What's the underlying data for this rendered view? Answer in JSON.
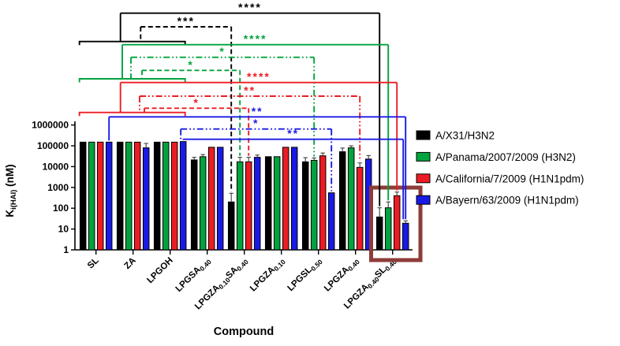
{
  "figure": {
    "x_axis_title": "Compound",
    "y_axis_title": {
      "main": "K",
      "subscript": "i(HAI)",
      "rest": " (nM)"
    },
    "y_ticks": [
      "1000000",
      "100000",
      "10000",
      "1000",
      "100",
      "10",
      "1"
    ]
  },
  "legend": {
    "items": [
      {
        "label": "A/X31/H3N2",
        "color": "#000000"
      },
      {
        "label": "A/Panama/2007/2009 (H3N2)",
        "color": "#00A33D"
      },
      {
        "label": "A/California/7/2009 (H1N1pdm)",
        "color": "#EC1C24"
      },
      {
        "label": "A/Bayern/63/2009 (H1N1pdm)",
        "color": "#1A1AE6"
      }
    ]
  },
  "chart_data": {
    "type": "bar",
    "y_scale": "log",
    "ylim": [
      1,
      1000000
    ],
    "ylabel": "Ki(HAI) (nM)",
    "xlabel": "Compound",
    "legend_position": "right",
    "grid": false,
    "categories": [
      {
        "name": "SL",
        "segments": [
          {
            "text": "SL"
          }
        ]
      },
      {
        "name": "ZA",
        "segments": [
          {
            "text": "ZA"
          }
        ]
      },
      {
        "name": "LPGOH",
        "segments": [
          {
            "text": "LPGOH"
          }
        ]
      },
      {
        "name": "LPGSA0.40",
        "segments": [
          {
            "text": "LPGSA"
          },
          {
            "text": "0.40",
            "sub": true
          }
        ]
      },
      {
        "name": "LPGZA0.10SA0.40",
        "segments": [
          {
            "text": "LPGZA"
          },
          {
            "text": "0.10",
            "sub": true
          },
          {
            "text": "SA"
          },
          {
            "text": "0.40",
            "sub": true
          }
        ]
      },
      {
        "name": "LPGZA0.10",
        "segments": [
          {
            "text": "LPGZA"
          },
          {
            "text": "0.10",
            "sub": true
          }
        ]
      },
      {
        "name": "LPGSL0.50",
        "segments": [
          {
            "text": "LPGSL"
          },
          {
            "text": "0.50",
            "sub": true
          }
        ]
      },
      {
        "name": "LPGZA0.40",
        "segments": [
          {
            "text": "LPGZA"
          },
          {
            "text": "0.40",
            "sub": true
          }
        ]
      },
      {
        "name": "LPGZA0.40SL0.40",
        "segments": [
          {
            "text": "LPGZA"
          },
          {
            "text": "0.40",
            "sub": true
          },
          {
            "text": "SL"
          },
          {
            "text": "0.40",
            "sub": true
          }
        ]
      }
    ],
    "series": [
      {
        "name": "A/X31/H3N2",
        "color": "#000000",
        "values": [
          150000,
          150000,
          150000,
          21000,
          200,
          30000,
          17000,
          52000,
          38
        ],
        "error_tops": [
          null,
          null,
          null,
          28000,
          520,
          null,
          27000,
          78000,
          105
        ]
      },
      {
        "name": "A/Panama/2007/2009 (H3N2)",
        "color": "#00A33D",
        "values": [
          150000,
          150000,
          150000,
          30000,
          17000,
          30000,
          20000,
          80000,
          105
        ],
        "error_tops": [
          null,
          null,
          null,
          38000,
          28000,
          null,
          26000,
          100000,
          200
        ]
      },
      {
        "name": "A/California/7/2009 (H1N1pdm)",
        "color": "#EC1C24",
        "values": [
          150000,
          150000,
          150000,
          85000,
          17000,
          85000,
          33000,
          9200,
          400
        ],
        "error_tops": [
          null,
          null,
          null,
          null,
          28000,
          null,
          45000,
          15000,
          600
        ]
      },
      {
        "name": "A/Bayern/63/2009 (H1N1pdm)",
        "color": "#1A1AE6",
        "values": [
          150000,
          80000,
          160000,
          85000,
          28000,
          85000,
          550,
          23000,
          19
        ],
        "error_tops": [
          null,
          130000,
          null,
          null,
          36000,
          null,
          null,
          34000,
          25
        ]
      }
    ],
    "significance": {
      "range_brackets": [
        {
          "series": 0,
          "y": 52.7,
          "from_group": 0,
          "to_group": 2
        },
        {
          "series": 1,
          "y": 100.0,
          "from_group": 0,
          "to_group": 2
        },
        {
          "series": 2,
          "y": 142.7,
          "from_group": 0,
          "to_group": 2
        }
      ],
      "comparisons": [
        {
          "series": 0,
          "style": "solid",
          "stars": "****",
          "y": 16.7,
          "left": {
            "range_riser": 152.7
          },
          "right": {
            "group": 8
          }
        },
        {
          "series": 0,
          "style": "dashed",
          "stars": "***",
          "y": 34.0,
          "left": {
            "range_riser": 178.3
          },
          "right": {
            "group": 4
          }
        },
        {
          "series": 1,
          "style": "solid",
          "stars": "****",
          "y": 56.7,
          "left": {
            "range_riser": 155.0
          },
          "right": {
            "group": 8
          }
        },
        {
          "series": 1,
          "style": "dashdot",
          "stars": "*",
          "y": 72.7,
          "left": {
            "range_riser": 166.0
          },
          "right": {
            "group": 6
          }
        },
        {
          "series": 1,
          "style": "dashed",
          "stars": "*",
          "y": 89.3,
          "left": {
            "range_riser": 180.0
          },
          "right": {
            "group": 4
          }
        },
        {
          "series": 2,
          "style": "solid",
          "stars": "****",
          "y": 104.7,
          "left": {
            "range_riser": 152.7
          },
          "right": {
            "group": 8
          }
        },
        {
          "series": 2,
          "style": "dashdot",
          "stars": "**",
          "y": 122.0,
          "left": {
            "range_riser": 177.0
          },
          "right": {
            "group": 7
          }
        },
        {
          "series": 2,
          "style": "dashed",
          "stars": "*",
          "y": 137.3,
          "left": {
            "range_riser": 183.0
          },
          "right": {
            "group": 4
          }
        },
        {
          "series": 3,
          "style": "solid",
          "stars": "**",
          "y": 148.3,
          "left": {
            "bar_group": 0
          },
          "right": {
            "group": 8
          }
        },
        {
          "series": 3,
          "style": "dashdot",
          "stars": "*",
          "y": 163.7,
          "left": {
            "bar_group": 2,
            "dx": -3
          },
          "right": {
            "group": 6
          }
        },
        {
          "series": 3,
          "style": "solid",
          "stars": "**",
          "y": 176.7,
          "left": {
            "bar_group": 2
          },
          "right": {
            "group": 8,
            "dx": -3
          }
        }
      ]
    },
    "highlight_box": {
      "around_group": "LPGZA0.40SL0.40",
      "color": "#8E3C39"
    }
  }
}
